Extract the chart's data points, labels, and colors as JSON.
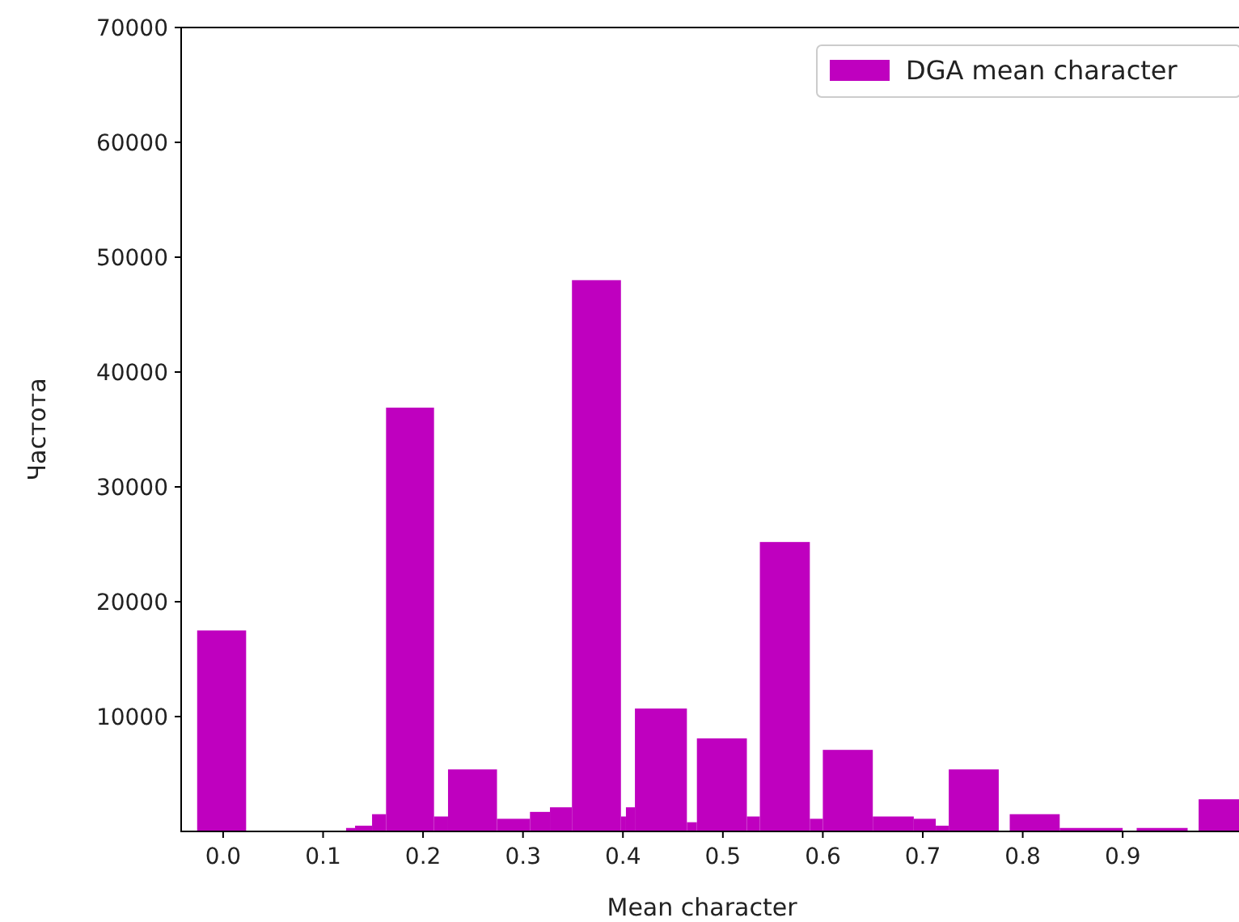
{
  "chart_data": {
    "type": "histogram",
    "xlabel": "Mean character",
    "ylabel": "Частота",
    "bins": [
      -0.026,
      0.023,
      0.123,
      0.132,
      0.149,
      0.163,
      0.211,
      0.225,
      0.274,
      0.307,
      0.327,
      0.349,
      0.398,
      0.403,
      0.412,
      0.464,
      0.474,
      0.524,
      0.537,
      0.587,
      0.6,
      0.65,
      0.691,
      0.713,
      0.726,
      0.776,
      0.787,
      0.837,
      0.9,
      0.914,
      0.965,
      0.976,
      1.018
    ],
    "series": [
      {
        "name": "DGA mean character",
        "color": "#bf00bf",
        "values": [
          17500,
          0,
          300,
          500,
          1500,
          36900,
          1300,
          5400,
          1100,
          1700,
          2100,
          48000,
          1300,
          2100,
          10700,
          800,
          8100,
          1300,
          25200,
          1100,
          7100,
          1300,
          1100,
          500,
          5400,
          0,
          1500,
          300,
          0,
          300,
          0,
          2800
        ]
      }
    ],
    "xlim": [
      -0.042,
      1.018
    ],
    "xticks": [
      {
        "value": 0,
        "label": "0.0"
      },
      0.1,
      0.2,
      0.3,
      0.4,
      0.5,
      0.6,
      0.7,
      0.8,
      0.9
    ],
    "ylim": [
      0,
      70000
    ],
    "yticks": [
      10000,
      20000,
      30000,
      40000,
      50000,
      60000,
      70000
    ],
    "legend": "top right"
  }
}
